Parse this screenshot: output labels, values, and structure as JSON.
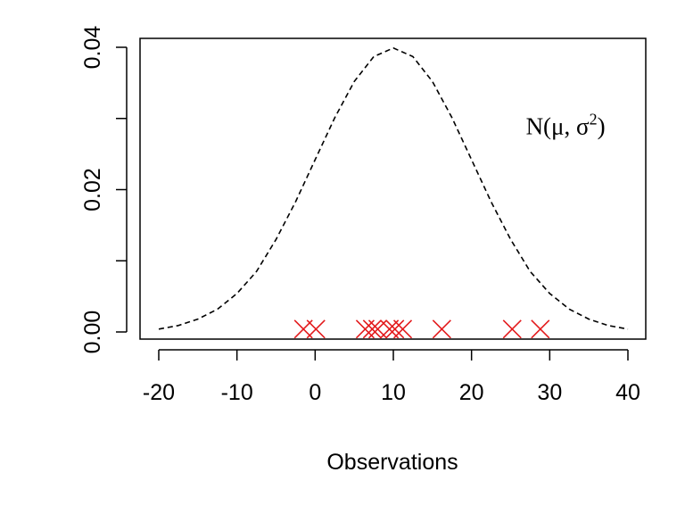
{
  "chart_data": {
    "type": "line",
    "title": "",
    "xlabel": "Observations",
    "ylabel": "",
    "xlim": [
      -20,
      40
    ],
    "ylim": [
      0,
      0.04
    ],
    "x_ticks": [
      -20,
      -10,
      0,
      10,
      20,
      30,
      40
    ],
    "x_tick_labels": [
      "-20",
      "-10",
      "0",
      "10",
      "20",
      "30",
      "40"
    ],
    "y_ticks": [
      0,
      0.01,
      0.02,
      0.03,
      0.04
    ],
    "y_tick_labels": [
      "0.00",
      "",
      "0.02",
      "",
      "0.04"
    ],
    "grid": false,
    "legend": "none",
    "series": [
      {
        "type": "line",
        "style": "dashed",
        "color": "#000000",
        "x": [
          -20,
          -17.5,
          -15,
          -12.5,
          -10,
          -7.5,
          -5,
          -2.5,
          0,
          2.5,
          5,
          7.5,
          10,
          12.5,
          15,
          17.5,
          20,
          22.5,
          25,
          27.5,
          30,
          32.5,
          35,
          37.5,
          40
        ],
        "y": [
          0.0004,
          0.0009,
          0.0018,
          0.0032,
          0.0054,
          0.0085,
          0.013,
          0.0183,
          0.0242,
          0.0301,
          0.0352,
          0.0387,
          0.0399,
          0.0387,
          0.0352,
          0.0301,
          0.0242,
          0.0183,
          0.013,
          0.0085,
          0.0054,
          0.0032,
          0.0018,
          0.0009,
          0.0004
        ]
      },
      {
        "type": "scatter",
        "marker": "x",
        "color": "#e31a1c",
        "x": [
          -1.5,
          0.1,
          6.4,
          7.3,
          8.0,
          9.5,
          10.2,
          11.2,
          16.2,
          25.2,
          28.8
        ],
        "y": [
          0.0004,
          0.0004,
          0.0004,
          0.0004,
          0.0004,
          0.0004,
          0.0004,
          0.0004,
          0.0004,
          0.0004,
          0.0004
        ]
      }
    ],
    "annotations": [
      {
        "text_main": "N(μ, σ",
        "text_sup": "2",
        "text_end": ")",
        "x": 29,
        "y": 0.029
      }
    ]
  }
}
